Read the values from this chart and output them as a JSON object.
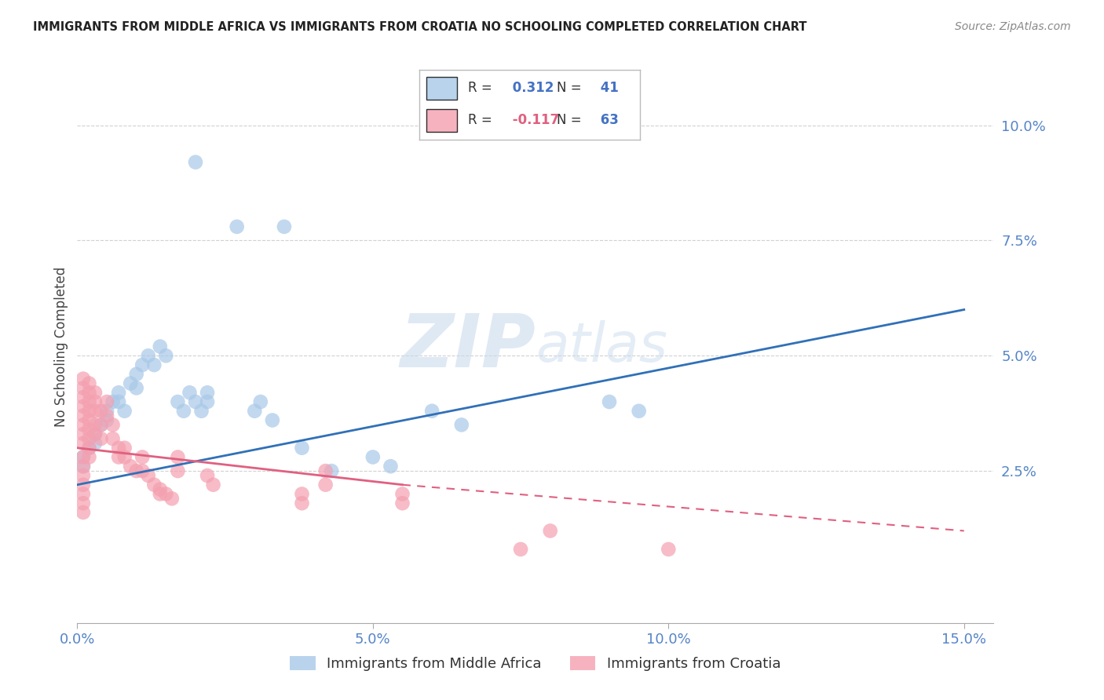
{
  "title": "IMMIGRANTS FROM MIDDLE AFRICA VS IMMIGRANTS FROM CROATIA NO SCHOOLING COMPLETED CORRELATION CHART",
  "source": "Source: ZipAtlas.com",
  "ylabel": "No Schooling Completed",
  "legend_label1": "Immigrants from Middle Africa",
  "legend_label2": "Immigrants from Croatia",
  "r1": 0.312,
  "n1": 41,
  "r2": -0.117,
  "n2": 63,
  "color1": "#a8c8e8",
  "color2": "#f4a0b0",
  "trendline1_color": "#3070b8",
  "trendline2_color": "#e06080",
  "xlim": [
    0.0,
    0.155
  ],
  "ylim": [
    -0.008,
    0.112
  ],
  "xticks": [
    0.0,
    0.05,
    0.1,
    0.15
  ],
  "xticklabels": [
    "0.0%",
    "5.0%",
    "10.0%",
    "15.0%"
  ],
  "yticks": [
    0.025,
    0.05,
    0.075,
    0.1
  ],
  "yticklabels": [
    "2.5%",
    "5.0%",
    "7.5%",
    "10.0%"
  ],
  "watermark_zip": "ZIP",
  "watermark_atlas": "atlas",
  "blue_dots": [
    [
      0.001,
      0.028
    ],
    [
      0.001,
      0.026
    ],
    [
      0.002,
      0.03
    ],
    [
      0.003,
      0.033
    ],
    [
      0.003,
      0.031
    ],
    [
      0.004,
      0.035
    ],
    [
      0.005,
      0.038
    ],
    [
      0.005,
      0.036
    ],
    [
      0.006,
      0.04
    ],
    [
      0.007,
      0.042
    ],
    [
      0.007,
      0.04
    ],
    [
      0.008,
      0.038
    ],
    [
      0.009,
      0.044
    ],
    [
      0.01,
      0.046
    ],
    [
      0.01,
      0.043
    ],
    [
      0.011,
      0.048
    ],
    [
      0.012,
      0.05
    ],
    [
      0.013,
      0.048
    ],
    [
      0.014,
      0.052
    ],
    [
      0.015,
      0.05
    ],
    [
      0.017,
      0.04
    ],
    [
      0.018,
      0.038
    ],
    [
      0.019,
      0.042
    ],
    [
      0.02,
      0.04
    ],
    [
      0.021,
      0.038
    ],
    [
      0.022,
      0.042
    ],
    [
      0.022,
      0.04
    ],
    [
      0.03,
      0.038
    ],
    [
      0.031,
      0.04
    ],
    [
      0.033,
      0.036
    ],
    [
      0.038,
      0.03
    ],
    [
      0.043,
      0.025
    ],
    [
      0.05,
      0.028
    ],
    [
      0.053,
      0.026
    ],
    [
      0.06,
      0.038
    ],
    [
      0.065,
      0.035
    ],
    [
      0.09,
      0.04
    ],
    [
      0.095,
      0.038
    ],
    [
      0.02,
      0.092
    ],
    [
      0.027,
      0.078
    ],
    [
      0.035,
      0.078
    ]
  ],
  "pink_dots": [
    [
      0.001,
      0.045
    ],
    [
      0.001,
      0.043
    ],
    [
      0.001,
      0.041
    ],
    [
      0.001,
      0.039
    ],
    [
      0.001,
      0.037
    ],
    [
      0.001,
      0.035
    ],
    [
      0.001,
      0.033
    ],
    [
      0.001,
      0.031
    ],
    [
      0.001,
      0.028
    ],
    [
      0.001,
      0.026
    ],
    [
      0.001,
      0.024
    ],
    [
      0.001,
      0.022
    ],
    [
      0.001,
      0.02
    ],
    [
      0.001,
      0.018
    ],
    [
      0.001,
      0.016
    ],
    [
      0.002,
      0.044
    ],
    [
      0.002,
      0.042
    ],
    [
      0.002,
      0.04
    ],
    [
      0.002,
      0.038
    ],
    [
      0.002,
      0.036
    ],
    [
      0.002,
      0.034
    ],
    [
      0.002,
      0.032
    ],
    [
      0.002,
      0.03
    ],
    [
      0.002,
      0.028
    ],
    [
      0.003,
      0.042
    ],
    [
      0.003,
      0.04
    ],
    [
      0.003,
      0.038
    ],
    [
      0.003,
      0.035
    ],
    [
      0.003,
      0.033
    ],
    [
      0.004,
      0.038
    ],
    [
      0.004,
      0.035
    ],
    [
      0.004,
      0.032
    ],
    [
      0.005,
      0.04
    ],
    [
      0.005,
      0.037
    ],
    [
      0.006,
      0.035
    ],
    [
      0.006,
      0.032
    ],
    [
      0.007,
      0.03
    ],
    [
      0.007,
      0.028
    ],
    [
      0.008,
      0.03
    ],
    [
      0.008,
      0.028
    ],
    [
      0.009,
      0.026
    ],
    [
      0.01,
      0.025
    ],
    [
      0.011,
      0.028
    ],
    [
      0.011,
      0.025
    ],
    [
      0.012,
      0.024
    ],
    [
      0.013,
      0.022
    ],
    [
      0.014,
      0.021
    ],
    [
      0.014,
      0.02
    ],
    [
      0.015,
      0.02
    ],
    [
      0.016,
      0.019
    ],
    [
      0.017,
      0.028
    ],
    [
      0.017,
      0.025
    ],
    [
      0.022,
      0.024
    ],
    [
      0.023,
      0.022
    ],
    [
      0.038,
      0.02
    ],
    [
      0.038,
      0.018
    ],
    [
      0.042,
      0.025
    ],
    [
      0.042,
      0.022
    ],
    [
      0.055,
      0.02
    ],
    [
      0.055,
      0.018
    ],
    [
      0.075,
      0.008
    ],
    [
      0.08,
      0.012
    ],
    [
      0.1,
      0.008
    ]
  ],
  "trendline1_x0": 0.0,
  "trendline1_y0": 0.022,
  "trendline1_x1": 0.15,
  "trendline1_y1": 0.06,
  "trendline2_x0": 0.0,
  "trendline2_y0": 0.03,
  "trendline2_solid_x1": 0.055,
  "trendline2_solid_y1": 0.022,
  "trendline2_dashed_x1": 0.15,
  "trendline2_dashed_y1": 0.012
}
